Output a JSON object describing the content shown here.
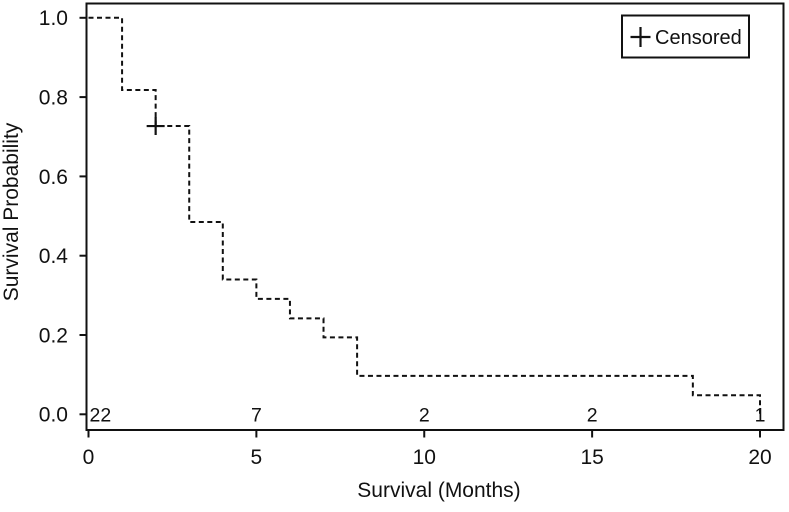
{
  "figure": {
    "background": "#ffffff",
    "line_color": "#111111",
    "text_color": "#111111"
  },
  "chart_data": {
    "type": "line",
    "subtype": "kaplan-meier-step",
    "title": "",
    "xlabel": "Survival (Months)",
    "ylabel": "Survival Probability",
    "xlim": [
      0,
      20
    ],
    "ylim": [
      0.0,
      1.0
    ],
    "x_ticks": [
      0,
      5,
      10,
      15,
      20
    ],
    "y_ticks": [
      0.0,
      0.2,
      0.4,
      0.6,
      0.8,
      1.0
    ],
    "grid": false,
    "frame": true,
    "line_style": "dashed",
    "series": [
      {
        "name": "Survival",
        "x": [
          0,
          1,
          2,
          3,
          4,
          5,
          6,
          7,
          8,
          18,
          20
        ],
        "y": [
          1.0,
          0.818,
          0.727,
          0.485,
          0.34,
          0.291,
          0.242,
          0.194,
          0.097,
          0.048,
          0.0
        ]
      }
    ],
    "censored_points": [
      {
        "x": 2,
        "y": 0.727
      }
    ],
    "at_risk": {
      "x": [
        0,
        5,
        10,
        15,
        20
      ],
      "values": [
        "22",
        "7",
        "2",
        "2",
        "1"
      ]
    },
    "legend": {
      "label": "Censored",
      "marker": "plus",
      "position": "top-right"
    }
  }
}
